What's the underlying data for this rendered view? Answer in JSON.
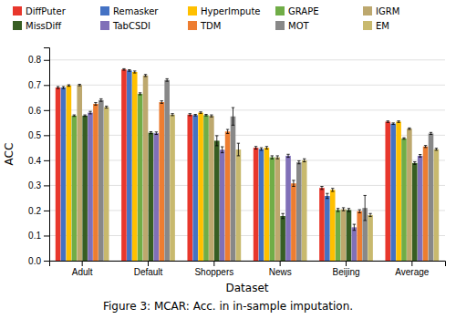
{
  "chart_data": {
    "type": "bar",
    "categories": [
      "Adult",
      "Default",
      "Shoppers",
      "News",
      "Beijing",
      "Average"
    ],
    "series": [
      {
        "name": "DiffPuter",
        "color": "#e8372c",
        "values": [
          0.69,
          0.762,
          0.582,
          0.45,
          0.29,
          0.554
        ],
        "errors": [
          0.004,
          0.003,
          0.004,
          0.005,
          0.006,
          0.003
        ]
      },
      {
        "name": "Remasker",
        "color": "#4472c4",
        "values": [
          0.69,
          0.758,
          0.58,
          0.445,
          0.258,
          0.546
        ],
        "errors": [
          0.004,
          0.003,
          0.003,
          0.005,
          0.01,
          0.003
        ]
      },
      {
        "name": "HyperImpute",
        "color": "#ffc000",
        "values": [
          0.698,
          0.752,
          0.59,
          0.45,
          0.282,
          0.554
        ],
        "errors": [
          0.003,
          0.004,
          0.003,
          0.005,
          0.006,
          0.003
        ]
      },
      {
        "name": "GRAPE",
        "color": "#70ad47",
        "values": [
          0.578,
          0.665,
          0.58,
          0.412,
          0.202,
          0.487
        ],
        "errors": [
          0.003,
          0.004,
          0.003,
          0.006,
          0.006,
          0.003
        ]
      },
      {
        "name": "IGRM",
        "color": "#bda86e",
        "values": [
          0.7,
          0.738,
          0.577,
          0.412,
          0.205,
          0.526
        ],
        "errors": [
          0.003,
          0.004,
          0.004,
          0.006,
          0.006,
          0.003
        ]
      },
      {
        "name": "MissDiff",
        "color": "#375e23",
        "values": [
          0.578,
          0.51,
          0.478,
          0.178,
          0.202,
          0.389
        ],
        "errors": [
          0.003,
          0.004,
          0.02,
          0.01,
          0.006,
          0.005
        ]
      },
      {
        "name": "TabCSDI",
        "color": "#8070b8",
        "values": [
          0.59,
          0.508,
          0.442,
          0.418,
          0.133,
          0.418
        ],
        "errors": [
          0.005,
          0.005,
          0.012,
          0.006,
          0.012,
          0.005
        ]
      },
      {
        "name": "TDM",
        "color": "#ed7d31",
        "values": [
          0.625,
          0.632,
          0.515,
          0.308,
          0.197,
          0.455
        ],
        "errors": [
          0.005,
          0.005,
          0.008,
          0.012,
          0.006,
          0.004
        ]
      },
      {
        "name": "MOT",
        "color": "#888888",
        "values": [
          0.64,
          0.72,
          0.575,
          0.392,
          0.21,
          0.507
        ],
        "errors": [
          0.005,
          0.005,
          0.035,
          0.006,
          0.05,
          0.004
        ]
      },
      {
        "name": "EM",
        "color": "#c8b96e",
        "values": [
          0.612,
          0.582,
          0.443,
          0.4,
          0.182,
          0.444
        ],
        "errors": [
          0.004,
          0.004,
          0.025,
          0.006,
          0.006,
          0.004
        ]
      }
    ],
    "x_label": "Dataset",
    "y_label": "ACC",
    "ylim": [
      0.0,
      0.85
    ],
    "yticks": [
      {
        "value": 0.0,
        "label": "0.0"
      },
      0.1,
      0.2,
      0.3,
      0.4,
      0.5,
      0.6,
      0.7,
      0.8
    ],
    "grid": true,
    "legend": "top",
    "annotations": [
      "Figure 3: MCAR: Acc. in in-sample imputation."
    ]
  }
}
